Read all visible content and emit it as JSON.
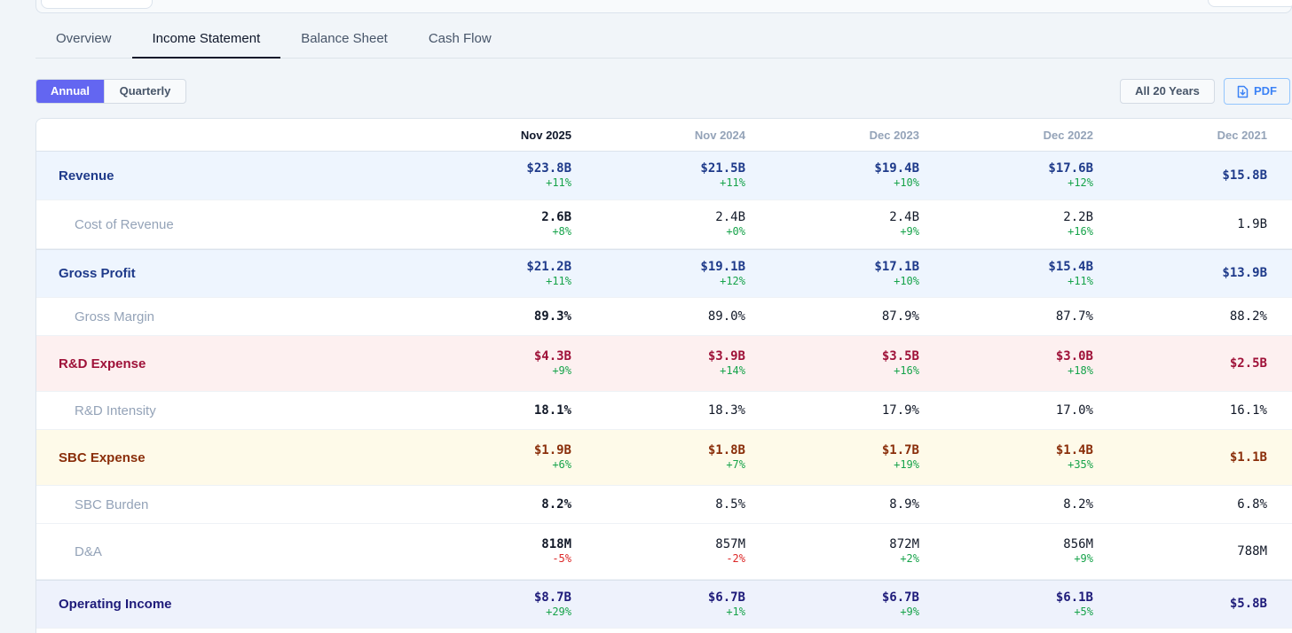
{
  "tabs": [
    {
      "label": "Overview",
      "active": false
    },
    {
      "label": "Income Statement",
      "active": true
    },
    {
      "label": "Balance Sheet",
      "active": false
    },
    {
      "label": "Cash Flow",
      "active": false
    }
  ],
  "period_toggle": {
    "annual": "Annual",
    "quarterly": "Quarterly",
    "selected": "Annual"
  },
  "years_button": "All 20 Years",
  "pdf_button": "PDF",
  "columns": [
    "Nov 2025",
    "Nov 2024",
    "Dec 2023",
    "Dec 2022",
    "Dec 2021"
  ],
  "rows": [
    {
      "label": "Revenue",
      "kind": "main",
      "theme": "blue",
      "height": 55,
      "values": [
        "$23.8B",
        "$21.5B",
        "$19.4B",
        "$17.6B",
        "$15.8B"
      ],
      "growth": [
        "+11%",
        "+11%",
        "+10%",
        "+12%",
        ""
      ]
    },
    {
      "label": "Cost of Revenue",
      "kind": "sub",
      "theme": "",
      "height": 55,
      "values": [
        "2.6B",
        "2.4B",
        "2.4B",
        "2.2B",
        "1.9B"
      ],
      "growth": [
        "+8%",
        "+0%",
        "+9%",
        "+16%",
        ""
      ]
    },
    {
      "label": "Gross Profit",
      "kind": "main",
      "theme": "blue",
      "height": 55,
      "values": [
        "$21.2B",
        "$19.1B",
        "$17.1B",
        "$15.4B",
        "$13.9B"
      ],
      "growth": [
        "+11%",
        "+12%",
        "+10%",
        "+11%",
        ""
      ]
    },
    {
      "label": "Gross Margin",
      "kind": "sub",
      "theme": "",
      "height": 43,
      "values": [
        "89.3%",
        "89.0%",
        "87.9%",
        "87.7%",
        "88.2%"
      ],
      "growth": [
        "",
        "",
        "",
        "",
        ""
      ]
    },
    {
      "label": "R&D Expense",
      "kind": "main",
      "theme": "red",
      "height": 63,
      "values": [
        "$4.3B",
        "$3.9B",
        "$3.5B",
        "$3.0B",
        "$2.5B"
      ],
      "growth": [
        "+9%",
        "+14%",
        "+16%",
        "+18%",
        ""
      ]
    },
    {
      "label": "R&D Intensity",
      "kind": "sub",
      "theme": "",
      "height": 43,
      "values": [
        "18.1%",
        "18.3%",
        "17.9%",
        "17.0%",
        "16.1%"
      ],
      "growth": [
        "",
        "",
        "",
        "",
        ""
      ]
    },
    {
      "label": "SBC Expense",
      "kind": "main",
      "theme": "yellow",
      "height": 63,
      "values": [
        "$1.9B",
        "$1.8B",
        "$1.7B",
        "$1.4B",
        "$1.1B"
      ],
      "growth": [
        "+6%",
        "+7%",
        "+19%",
        "+35%",
        ""
      ]
    },
    {
      "label": "SBC Burden",
      "kind": "sub",
      "theme": "",
      "height": 43,
      "values": [
        "8.2%",
        "8.5%",
        "8.9%",
        "8.2%",
        "6.8%"
      ],
      "growth": [
        "",
        "",
        "",
        "",
        ""
      ]
    },
    {
      "label": "D&A",
      "kind": "sub",
      "theme": "",
      "height": 63,
      "values": [
        "818M",
        "857M",
        "872M",
        "856M",
        "788M"
      ],
      "growth": [
        "-5%",
        "-2%",
        "+2%",
        "+9%",
        ""
      ]
    },
    {
      "label": "Operating Income",
      "kind": "main",
      "theme": "indigo",
      "height": 55,
      "values": [
        "$8.7B",
        "$6.7B",
        "$6.7B",
        "$6.1B",
        "$5.8B"
      ],
      "growth": [
        "+29%",
        "+1%",
        "+9%",
        "+5%",
        ""
      ]
    }
  ]
}
